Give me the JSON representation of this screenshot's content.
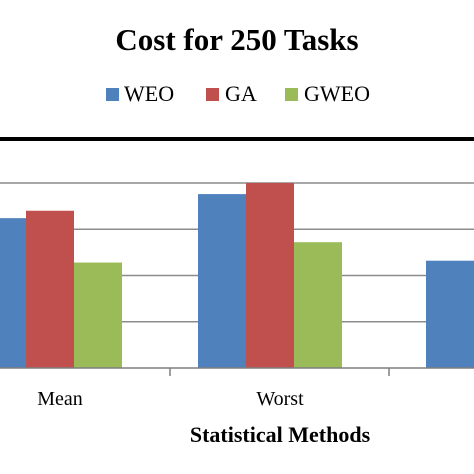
{
  "chart_data": {
    "type": "bar",
    "title": "Cost for 250 Tasks",
    "xlabel": "Statistical Methods",
    "ylabel": "",
    "categories": [
      "Mean",
      "Worst",
      ""
    ],
    "series": [
      {
        "name": "WEO",
        "color": "#4F81BD",
        "values": [
          0.81,
          0.94,
          0.58
        ]
      },
      {
        "name": "GA",
        "color": "#C0504D",
        "values": [
          0.85,
          1.0,
          null
        ]
      },
      {
        "name": "GWEO",
        "color": "#9BBB59",
        "values": [
          0.57,
          0.68,
          null
        ]
      }
    ],
    "ylim": [
      0,
      1.0
    ],
    "grid": true,
    "legend_position": "top"
  }
}
